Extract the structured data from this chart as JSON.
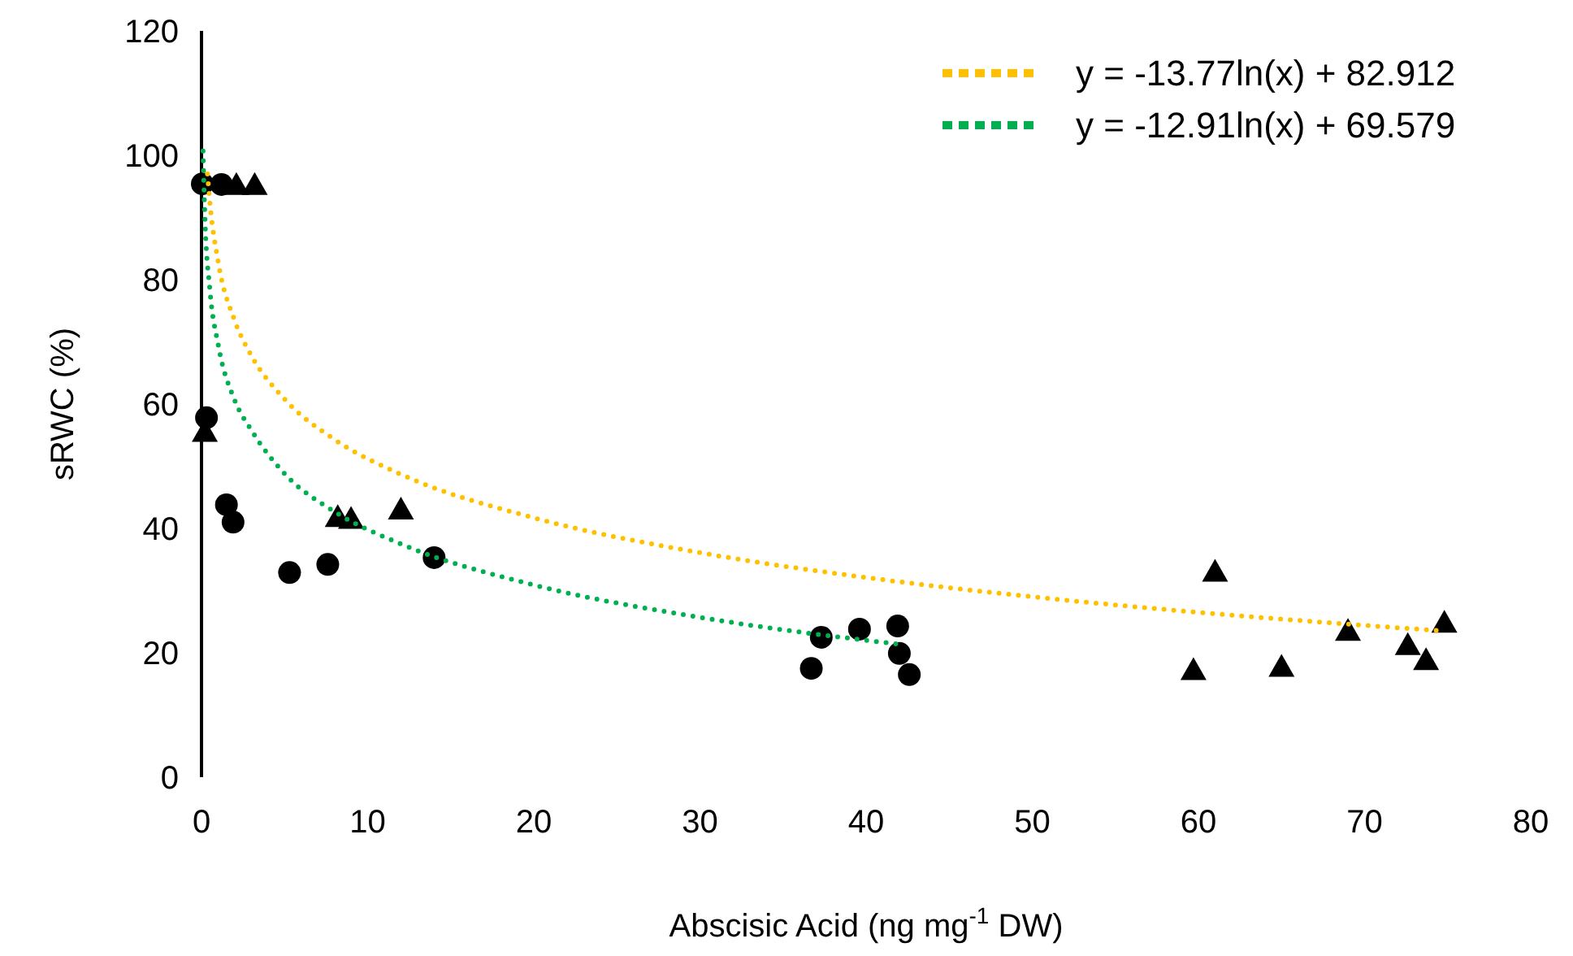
{
  "chart_data": {
    "type": "scatter",
    "xlabel": "Abscisic Acid (ng mg$^{-1}$ DW)",
    "ylabel": "sRWC (%)",
    "xlim": [
      0,
      80
    ],
    "xticks": [
      0,
      10,
      20,
      30,
      40,
      50,
      60,
      70,
      80
    ],
    "ylim": [
      0,
      120
    ],
    "yticks": [
      0,
      20,
      40,
      60,
      80,
      100,
      120
    ],
    "grid": false,
    "legend": "top right",
    "series": [
      {
        "color": "#000000",
        "marker": "circle",
        "x": [
          0.05,
          1.2,
          0.3,
          1.5,
          1.9,
          5.3,
          7.6,
          14,
          36.7,
          37.3,
          39.6,
          41.9,
          42,
          42.6
        ],
        "values": [
          95.4,
          95.3,
          57.8,
          43.8,
          41,
          32.9,
          34.2,
          35.3,
          17.5,
          22.5,
          23.8,
          24.3,
          19.9,
          16.5
        ]
      },
      {
        "color": "#000000",
        "marker": "triangle",
        "x": [
          2.1,
          3.2,
          0.2,
          8.2,
          9,
          12,
          61,
          59.7,
          65,
          69,
          72.6,
          73.7,
          74.8
        ],
        "values": [
          95.2,
          95.2,
          55.5,
          41.8,
          41.5,
          43,
          33,
          17.2,
          17.7,
          23.5,
          21.2,
          18.8,
          24.8
        ]
      },
      {
        "type": "line",
        "name": "y = -13.77ln(x) + 82.912",
        "color": "#ffc000",
        "line_style": "dotted",
        "marker": "none",
        "x": [
          0.36,
          0.5,
          1,
          2,
          3,
          5,
          8,
          12,
          20,
          30,
          40,
          50,
          60,
          74.8
        ],
        "values": [
          97,
          92.5,
          82.9,
          73.4,
          67.8,
          60.8,
          54.3,
          48.7,
          41.7,
          36.1,
          32.1,
          29,
          26.5,
          23.5
        ]
      },
      {
        "type": "line",
        "name": "y = -12.91ln(x) + 69.579",
        "color": "#00b050",
        "line_style": "dotted",
        "marker": "none",
        "x": [
          0.09,
          0.2,
          0.5,
          1,
          2,
          3,
          5,
          8,
          12,
          20,
          30,
          41.9
        ],
        "values": [
          100.7,
          90.4,
          78.5,
          69.6,
          60.6,
          55.8,
          48.8,
          42.7,
          37.5,
          30.9,
          25.7,
          21.4
        ]
      }
    ]
  }
}
